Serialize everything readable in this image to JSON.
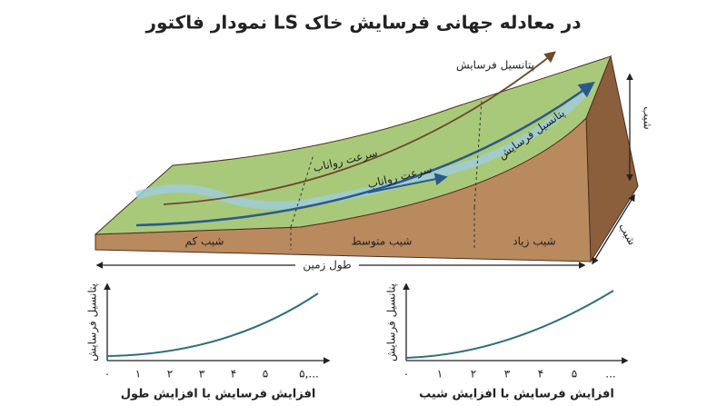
{
  "header": {
    "title": "نمودار فاکتور LS در معادله جهانی فرسایش خاک"
  },
  "illustration": {
    "erosion_potential_arrow": "پتانسیل فرسایش",
    "runoff_speed_top": "سرعت رواناب",
    "runoff_speed_flow": "سرعت رواناب",
    "erosion_potential_flow": "پتانسیل فرسایش",
    "zones": [
      "شیب کم",
      "شیب متوسط",
      "شیب زیاد"
    ],
    "length_label": "طول زمین",
    "slope_height_label": "شیب",
    "slope_side_label": "شیب"
  },
  "charts": [
    {
      "y_label": "پتانسیل فرسایش",
      "x_ticks": [
        "۰",
        "۱",
        "۲",
        "۳",
        "۴",
        "۵",
        "۵,..."
      ],
      "x_label": "افزایش فرسایش با افزایش طول"
    },
    {
      "y_label": "پتانسیل فرسایش",
      "x_ticks": [
        "۰",
        "۱",
        "۲",
        "۳",
        "۴",
        "۵",
        "..."
      ],
      "x_label": "افزایش فرسایش با افزایش شیب"
    }
  ]
}
